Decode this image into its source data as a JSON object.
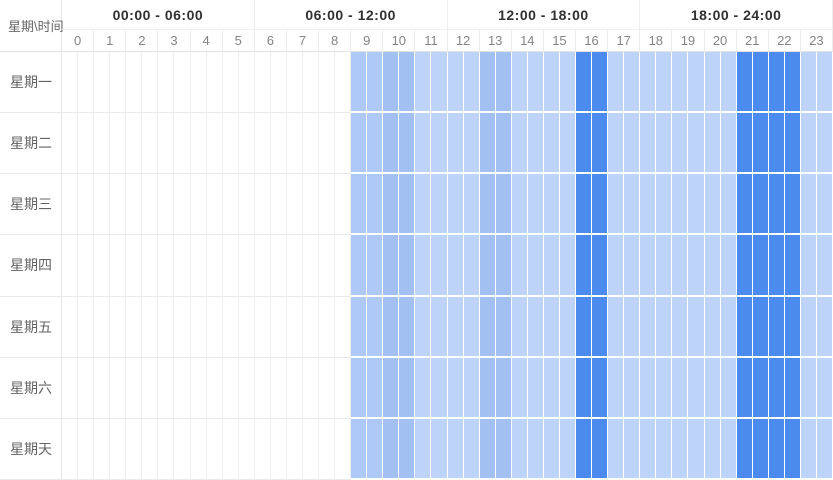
{
  "corner_label": "星期\\时间",
  "chart_data": {
    "type": "heatmap",
    "title": "",
    "corner_label": "星期\\时间",
    "x_groups": [
      "00:00 - 06:00",
      "06:00 - 12:00",
      "12:00 - 18:00",
      "18:00 - 24:00"
    ],
    "x_categories": [
      "0",
      "1",
      "2",
      "3",
      "4",
      "5",
      "6",
      "7",
      "8",
      "9",
      "10",
      "11",
      "12",
      "13",
      "14",
      "15",
      "16",
      "17",
      "18",
      "19",
      "20",
      "21",
      "22",
      "23"
    ],
    "y_categories": [
      "星期一",
      "星期二",
      "星期三",
      "星期四",
      "星期五",
      "星期六",
      "星期天"
    ],
    "cell_granularity_minutes": 30,
    "legend_position": "none",
    "grid": true,
    "intensity_scale": {
      "0": "#ffffff",
      "1": "#bdd3f8",
      "2": "#aec9f5",
      "3": "#a2c0f2",
      "4": "#4b8bee"
    },
    "series": [
      {
        "name": "星期一",
        "hour_levels": [
          0,
          0,
          0,
          0,
          0,
          0,
          0,
          0,
          0,
          2,
          3,
          1,
          1,
          3,
          1,
          1,
          4,
          1,
          1,
          1,
          1,
          4,
          4,
          1
        ]
      },
      {
        "name": "星期二",
        "hour_levels": [
          0,
          0,
          0,
          0,
          0,
          0,
          0,
          0,
          0,
          2,
          3,
          1,
          1,
          3,
          1,
          1,
          4,
          1,
          1,
          1,
          1,
          4,
          4,
          1
        ]
      },
      {
        "name": "星期三",
        "hour_levels": [
          0,
          0,
          0,
          0,
          0,
          0,
          0,
          0,
          0,
          2,
          3,
          1,
          1,
          3,
          1,
          1,
          4,
          1,
          1,
          1,
          1,
          4,
          4,
          1
        ]
      },
      {
        "name": "星期四",
        "hour_levels": [
          0,
          0,
          0,
          0,
          0,
          0,
          0,
          0,
          0,
          2,
          3,
          1,
          1,
          3,
          1,
          1,
          4,
          1,
          1,
          1,
          1,
          4,
          4,
          1
        ]
      },
      {
        "name": "星期五",
        "hour_levels": [
          0,
          0,
          0,
          0,
          0,
          0,
          0,
          0,
          0,
          2,
          3,
          1,
          1,
          3,
          1,
          1,
          4,
          1,
          1,
          1,
          1,
          4,
          4,
          1
        ]
      },
      {
        "name": "星期六",
        "hour_levels": [
          0,
          0,
          0,
          0,
          0,
          0,
          0,
          0,
          0,
          2,
          3,
          1,
          1,
          3,
          1,
          1,
          4,
          1,
          1,
          1,
          1,
          4,
          4,
          1
        ]
      },
      {
        "name": "星期天",
        "hour_levels": [
          0,
          0,
          0,
          0,
          0,
          0,
          0,
          0,
          0,
          2,
          3,
          1,
          1,
          3,
          1,
          1,
          4,
          1,
          1,
          1,
          1,
          4,
          4,
          1
        ]
      }
    ]
  }
}
